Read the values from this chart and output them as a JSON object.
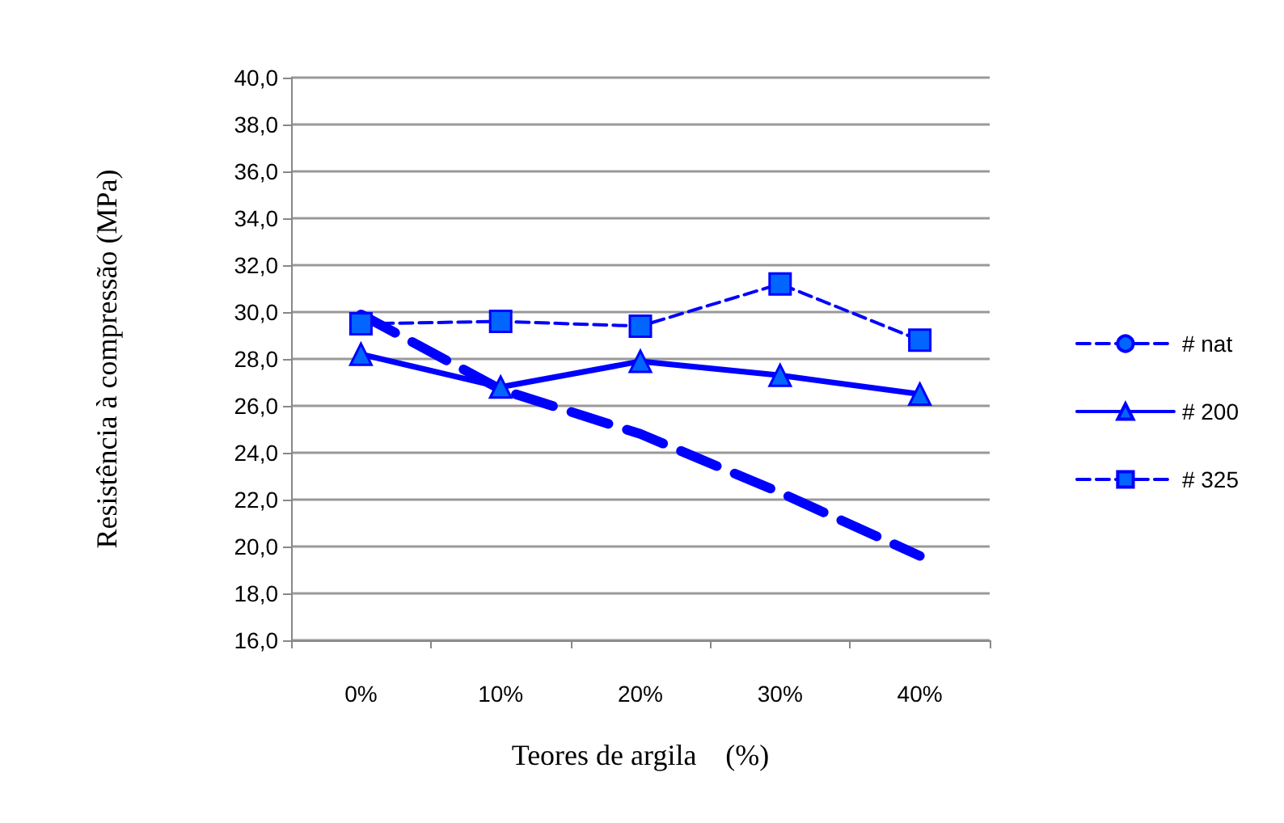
{
  "chart_data": {
    "type": "line",
    "xlabel": "Teores de argila    (%)",
    "ylabel": "Resistência à compressão (MPa)",
    "categories": [
      "0%",
      "10%",
      "20%",
      "30%",
      "40%"
    ],
    "series": [
      {
        "name": "# nat",
        "color": "#0000ff",
        "line_style": "dashed",
        "marker": "none",
        "values": [
          29.9,
          26.7,
          24.8,
          22.3,
          19.6
        ]
      },
      {
        "name": "# 200",
        "color": "#0000ff",
        "line_style": "solid",
        "marker": "triangle",
        "values": [
          28.2,
          26.8,
          27.9,
          27.3,
          26.5
        ]
      },
      {
        "name": "# 325",
        "color": "#0000ff",
        "line_style": "dashed",
        "marker": "square",
        "values": [
          29.5,
          29.6,
          29.4,
          31.2,
          28.8
        ]
      }
    ],
    "ylim": [
      16,
      40
    ],
    "yticks": [
      {
        "value": 16,
        "label": "16,0"
      },
      {
        "value": 18,
        "label": "18,0"
      },
      {
        "value": 20,
        "label": "20,0"
      },
      {
        "value": 22,
        "label": "22,0"
      },
      {
        "value": 24,
        "label": "24,0"
      },
      {
        "value": 26,
        "label": "26,0"
      },
      {
        "value": 28,
        "label": "28,0"
      },
      {
        "value": 30,
        "label": "30,0"
      },
      {
        "value": 32,
        "label": "32,0"
      },
      {
        "value": 34,
        "label": "34,0"
      },
      {
        "value": 36,
        "label": "36,0"
      },
      {
        "value": 38,
        "label": "38,0"
      },
      {
        "value": 40,
        "label": "40,0"
      }
    ],
    "grid": "y",
    "legend": "right"
  }
}
